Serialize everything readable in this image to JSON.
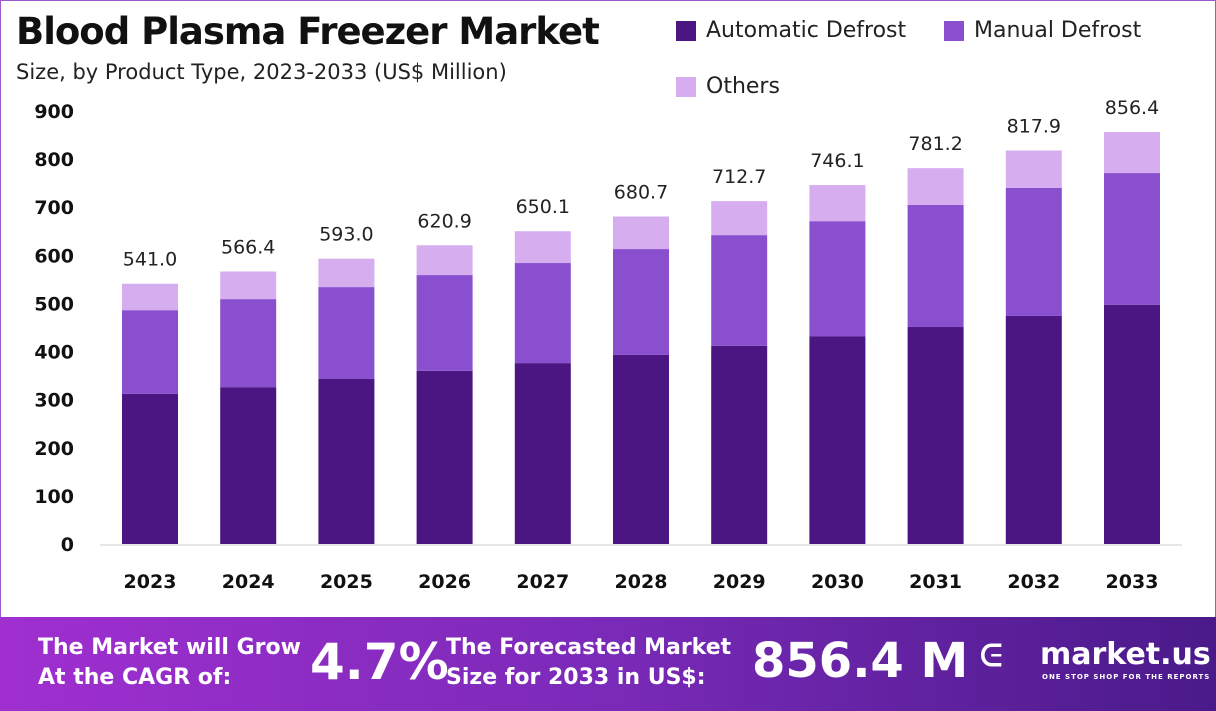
{
  "chart_data": {
    "type": "bar",
    "stacked": true,
    "title": "Blood Plasma Freezer Market",
    "subtitle": "Size, by Product Type, 2023-2033 (US$ Million)",
    "categories": [
      "2023",
      "2024",
      "2025",
      "2026",
      "2027",
      "2028",
      "2029",
      "2030",
      "2031",
      "2032",
      "2033"
    ],
    "series": [
      {
        "name": "Automatic Defrost",
        "color": "#4b1682",
        "values": [
          312,
          326,
          343,
          360,
          376,
          393,
          412,
          432,
          451,
          474,
          497
        ]
      },
      {
        "name": "Manual Defrost",
        "color": "#8a4fcf",
        "values": [
          174,
          183,
          191,
          199,
          208,
          220,
          230,
          239,
          254,
          266,
          274
        ]
      },
      {
        "name": "Others",
        "color": "#d6aef0",
        "values": [
          55,
          57.4,
          59,
          61.9,
          66.1,
          67.7,
          70.7,
          75.1,
          76.2,
          77.9,
          85.4
        ]
      }
    ],
    "totals": [
      "541.0",
      "566.4",
      "593.0",
      "620.9",
      "650.1",
      "680.7",
      "712.7",
      "746.1",
      "781.2",
      "817.9",
      "856.4"
    ],
    "ylim": [
      0,
      900
    ],
    "yticks": [
      "0",
      "100",
      "200",
      "300",
      "400",
      "500",
      "600",
      "700",
      "800",
      "900"
    ],
    "grid": false,
    "legend": "top-right"
  },
  "footer": {
    "cagr_label_1": "The Market will Grow",
    "cagr_label_2": "At the CAGR of:",
    "cagr_value": "4.7%",
    "forecast_label_1": "The Forecasted Market",
    "forecast_label_2": "Size for 2033 in US$:",
    "forecast_value": "856.4 M",
    "logo_text": "market.us",
    "logo_tagline": "ONE STOP SHOP FOR THE REPORTS"
  }
}
